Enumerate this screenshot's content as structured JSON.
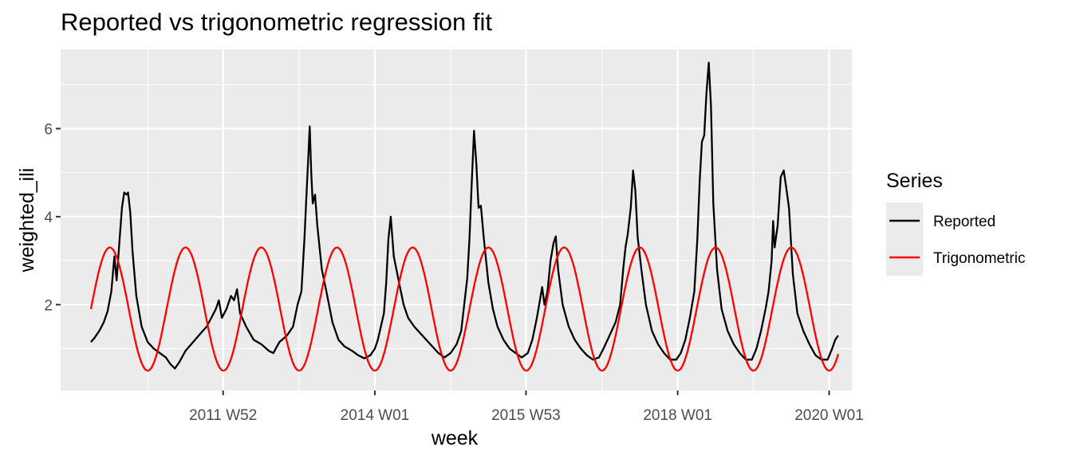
{
  "chart_data": {
    "type": "line",
    "title": "Reported vs trigonometric regression fit",
    "xlabel": "week",
    "ylabel": "weighted_ili",
    "x_range": [
      2009.85,
      2020.3
    ],
    "ylim": [
      0.05,
      7.8
    ],
    "grid": true,
    "x_ticks": [
      {
        "label": "2011 W52",
        "value": 2011.996
      },
      {
        "label": "2014 W01",
        "value": 2014.0
      },
      {
        "label": "2015 W53",
        "value": 2015.996
      },
      {
        "label": "2018 W01",
        "value": 2018.0
      },
      {
        "label": "2020 W01",
        "value": 2020.0
      }
    ],
    "x_minor_ticks": [
      2011.0,
      2013.0,
      2015.0,
      2017.0,
      2019.0
    ],
    "y_ticks": [
      2,
      4,
      6
    ],
    "y_minor_ticks": [
      1,
      3,
      5,
      7
    ],
    "legend": {
      "title": "Series",
      "position": "right",
      "entries": [
        {
          "label": "Reported",
          "color": "#000000"
        },
        {
          "label": "Trigonometric",
          "color": "#ff0000"
        }
      ]
    },
    "series": [
      {
        "name": "Reported",
        "color": "#000000",
        "points": [
          [
            2010.25,
            1.15
          ],
          [
            2010.3,
            1.25
          ],
          [
            2010.36,
            1.4
          ],
          [
            2010.42,
            1.6
          ],
          [
            2010.47,
            1.85
          ],
          [
            2010.52,
            2.3
          ],
          [
            2010.56,
            3.1
          ],
          [
            2010.59,
            2.55
          ],
          [
            2010.63,
            3.5
          ],
          [
            2010.66,
            4.2
          ],
          [
            2010.69,
            4.55
          ],
          [
            2010.72,
            4.5
          ],
          [
            2010.74,
            4.55
          ],
          [
            2010.77,
            4.1
          ],
          [
            2010.8,
            3.2
          ],
          [
            2010.85,
            2.2
          ],
          [
            2010.92,
            1.5
          ],
          [
            2011.0,
            1.15
          ],
          [
            2011.08,
            1.0
          ],
          [
            2011.16,
            0.9
          ],
          [
            2011.24,
            0.8
          ],
          [
            2011.3,
            0.65
          ],
          [
            2011.36,
            0.55
          ],
          [
            2011.42,
            0.7
          ],
          [
            2011.5,
            0.95
          ],
          [
            2011.6,
            1.15
          ],
          [
            2011.7,
            1.35
          ],
          [
            2011.78,
            1.5
          ],
          [
            2011.84,
            1.7
          ],
          [
            2011.9,
            1.9
          ],
          [
            2011.94,
            2.1
          ],
          [
            2011.98,
            1.7
          ],
          [
            2012.04,
            1.9
          ],
          [
            2012.1,
            2.2
          ],
          [
            2012.14,
            2.1
          ],
          [
            2012.18,
            2.35
          ],
          [
            2012.22,
            1.8
          ],
          [
            2012.3,
            1.5
          ],
          [
            2012.4,
            1.2
          ],
          [
            2012.5,
            1.1
          ],
          [
            2012.6,
            0.95
          ],
          [
            2012.66,
            0.9
          ],
          [
            2012.74,
            1.15
          ],
          [
            2012.84,
            1.3
          ],
          [
            2012.92,
            1.5
          ],
          [
            2012.98,
            2.0
          ],
          [
            2013.03,
            2.3
          ],
          [
            2013.07,
            3.5
          ],
          [
            2013.1,
            4.6
          ],
          [
            2013.12,
            5.3
          ],
          [
            2013.14,
            6.05
          ],
          [
            2013.16,
            5.0
          ],
          [
            2013.18,
            4.3
          ],
          [
            2013.21,
            4.5
          ],
          [
            2013.24,
            3.8
          ],
          [
            2013.3,
            2.8
          ],
          [
            2013.36,
            2.3
          ],
          [
            2013.44,
            1.6
          ],
          [
            2013.52,
            1.2
          ],
          [
            2013.6,
            1.05
          ],
          [
            2013.7,
            0.95
          ],
          [
            2013.78,
            0.85
          ],
          [
            2013.86,
            0.78
          ],
          [
            2013.94,
            0.85
          ],
          [
            2014.0,
            1.0
          ],
          [
            2014.04,
            1.2
          ],
          [
            2014.08,
            1.5
          ],
          [
            2014.12,
            1.8
          ],
          [
            2014.15,
            2.5
          ],
          [
            2014.18,
            3.5
          ],
          [
            2014.21,
            4.0
          ],
          [
            2014.25,
            3.1
          ],
          [
            2014.32,
            2.5
          ],
          [
            2014.38,
            2.0
          ],
          [
            2014.44,
            1.7
          ],
          [
            2014.52,
            1.5
          ],
          [
            2014.6,
            1.35
          ],
          [
            2014.68,
            1.2
          ],
          [
            2014.76,
            1.05
          ],
          [
            2014.84,
            0.9
          ],
          [
            2014.92,
            0.8
          ],
          [
            2015.0,
            0.9
          ],
          [
            2015.08,
            1.1
          ],
          [
            2015.14,
            1.4
          ],
          [
            2015.18,
            2.0
          ],
          [
            2015.22,
            2.6
          ],
          [
            2015.25,
            3.5
          ],
          [
            2015.28,
            4.8
          ],
          [
            2015.31,
            5.95
          ],
          [
            2015.34,
            5.2
          ],
          [
            2015.37,
            4.2
          ],
          [
            2015.4,
            4.25
          ],
          [
            2015.44,
            3.5
          ],
          [
            2015.5,
            2.5
          ],
          [
            2015.56,
            1.9
          ],
          [
            2015.62,
            1.5
          ],
          [
            2015.7,
            1.2
          ],
          [
            2015.78,
            1.0
          ],
          [
            2015.86,
            0.9
          ],
          [
            2015.94,
            0.8
          ],
          [
            2016.02,
            0.9
          ],
          [
            2016.08,
            1.2
          ],
          [
            2016.14,
            1.7
          ],
          [
            2016.18,
            2.1
          ],
          [
            2016.21,
            2.4
          ],
          [
            2016.24,
            2.0
          ],
          [
            2016.28,
            2.3
          ],
          [
            2016.32,
            3.0
          ],
          [
            2016.36,
            3.4
          ],
          [
            2016.39,
            3.55
          ],
          [
            2016.42,
            2.8
          ],
          [
            2016.48,
            2.0
          ],
          [
            2016.56,
            1.5
          ],
          [
            2016.64,
            1.2
          ],
          [
            2016.72,
            1.0
          ],
          [
            2016.8,
            0.85
          ],
          [
            2016.88,
            0.75
          ],
          [
            2016.96,
            0.8
          ],
          [
            2017.02,
            1.0
          ],
          [
            2017.1,
            1.3
          ],
          [
            2017.18,
            1.6
          ],
          [
            2017.24,
            2.0
          ],
          [
            2017.28,
            2.8
          ],
          [
            2017.31,
            3.3
          ],
          [
            2017.34,
            3.6
          ],
          [
            2017.38,
            4.2
          ],
          [
            2017.41,
            5.05
          ],
          [
            2017.44,
            4.6
          ],
          [
            2017.47,
            3.55
          ],
          [
            2017.52,
            2.8
          ],
          [
            2017.58,
            2.0
          ],
          [
            2017.66,
            1.4
          ],
          [
            2017.74,
            1.1
          ],
          [
            2017.82,
            0.9
          ],
          [
            2017.9,
            0.75
          ],
          [
            2017.98,
            0.75
          ],
          [
            2018.04,
            0.9
          ],
          [
            2018.1,
            1.2
          ],
          [
            2018.16,
            1.7
          ],
          [
            2018.22,
            2.3
          ],
          [
            2018.26,
            3.5
          ],
          [
            2018.29,
            4.8
          ],
          [
            2018.32,
            5.7
          ],
          [
            2018.35,
            5.85
          ],
          [
            2018.38,
            6.8
          ],
          [
            2018.41,
            7.5
          ],
          [
            2018.44,
            6.5
          ],
          [
            2018.47,
            4.3
          ],
          [
            2018.52,
            2.8
          ],
          [
            2018.58,
            1.9
          ],
          [
            2018.66,
            1.4
          ],
          [
            2018.74,
            1.1
          ],
          [
            2018.82,
            0.9
          ],
          [
            2018.9,
            0.75
          ],
          [
            2018.98,
            0.75
          ],
          [
            2019.04,
            1.0
          ],
          [
            2019.1,
            1.4
          ],
          [
            2019.16,
            1.9
          ],
          [
            2019.2,
            2.3
          ],
          [
            2019.24,
            3.0
          ],
          [
            2019.26,
            3.9
          ],
          [
            2019.28,
            3.3
          ],
          [
            2019.32,
            3.8
          ],
          [
            2019.36,
            4.9
          ],
          [
            2019.4,
            5.05
          ],
          [
            2019.43,
            4.7
          ],
          [
            2019.47,
            4.2
          ],
          [
            2019.52,
            2.7
          ],
          [
            2019.58,
            1.8
          ],
          [
            2019.66,
            1.4
          ],
          [
            2019.74,
            1.1
          ],
          [
            2019.82,
            0.85
          ],
          [
            2019.9,
            0.75
          ],
          [
            2019.98,
            0.75
          ],
          [
            2020.04,
            1.0
          ],
          [
            2020.08,
            1.2
          ],
          [
            2020.12,
            1.3
          ]
        ]
      },
      {
        "name": "Trigonometric",
        "color": "#ff0000",
        "model": {
          "form": "mean + amplitude * cos(2*pi*(x - peak))",
          "mean": 1.9,
          "amplitude": 1.4,
          "period": 1,
          "peak": 0.5,
          "x_range": [
            2010.25,
            2020.12
          ]
        }
      }
    ]
  }
}
